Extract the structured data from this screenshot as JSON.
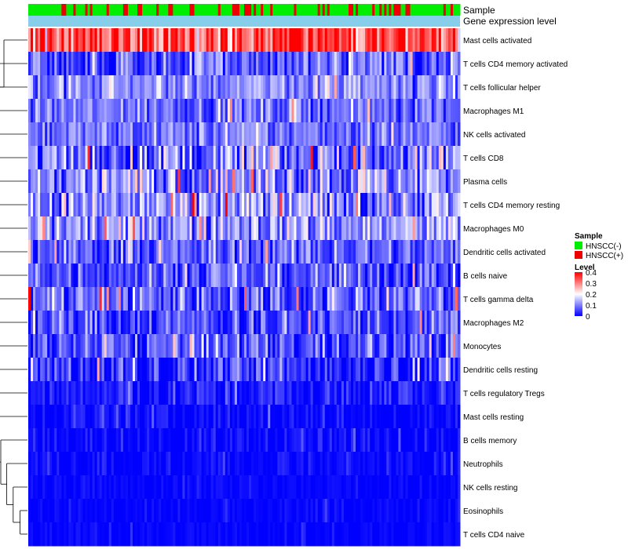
{
  "chart_data": {
    "type": "heatmap",
    "title": "",
    "annotation_labels": {
      "sample": "Sample",
      "gene": "Gene expression level"
    },
    "n_columns": 182,
    "rows": [
      {
        "name": "Mast cells activated",
        "mean": 0.34,
        "spread": 0.07
      },
      {
        "name": "T cells CD4 memory activated",
        "mean": 0.07,
        "spread": 0.06
      },
      {
        "name": "T cells follicular helper",
        "mean": 0.11,
        "spread": 0.04
      },
      {
        "name": "Macrophages M1",
        "mean": 0.09,
        "spread": 0.04
      },
      {
        "name": "NK cells activated",
        "mean": 0.09,
        "spread": 0.04
      },
      {
        "name": "T cells CD8",
        "mean": 0.09,
        "spread": 0.07
      },
      {
        "name": "Plasma cells",
        "mean": 0.12,
        "spread": 0.07
      },
      {
        "name": "T cells CD4 memory resting",
        "mean": 0.11,
        "spread": 0.07
      },
      {
        "name": "Macrophages M0",
        "mean": 0.12,
        "spread": 0.06
      },
      {
        "name": "Dendritic cells activated",
        "mean": 0.07,
        "spread": 0.05
      },
      {
        "name": "B cells naive",
        "mean": 0.07,
        "spread": 0.05
      },
      {
        "name": "T cells gamma delta",
        "mean": 0.08,
        "spread": 0.06
      },
      {
        "name": "Macrophages M2",
        "mean": 0.06,
        "spread": 0.05
      },
      {
        "name": "Monocytes",
        "mean": 0.06,
        "spread": 0.05
      },
      {
        "name": "Dendritic cells resting",
        "mean": 0.04,
        "spread": 0.05
      },
      {
        "name": "T cells regulatory  Tregs",
        "mean": 0.02,
        "spread": 0.03
      },
      {
        "name": "Mast cells resting",
        "mean": 0.005,
        "spread": 0.02
      },
      {
        "name": "B cells memory",
        "mean": 0.005,
        "spread": 0.02
      },
      {
        "name": "Neutrophils",
        "mean": 0.005,
        "spread": 0.015
      },
      {
        "name": "NK cells resting",
        "mean": 0.003,
        "spread": 0.01
      },
      {
        "name": "Eosinophils",
        "mean": 0.002,
        "spread": 0.01
      },
      {
        "name": "T cells CD4 naive",
        "mean": 0.002,
        "spread": 0.01
      }
    ],
    "sample_legend": {
      "title": "Sample",
      "entries": [
        {
          "label": "HNSCC(-)",
          "color": "#00ee00"
        },
        {
          "label": "HNSCC(+)",
          "color": "#ee0000"
        }
      ],
      "positive_fraction": 0.22
    },
    "level_legend": {
      "title": "Level",
      "ticks": [
        "0.4",
        "0.3",
        "0.2",
        "0.1",
        "0"
      ],
      "range": [
        0,
        0.4
      ],
      "colors": [
        "#0000ff",
        "#ffffff",
        "#ff0000"
      ]
    },
    "gene_color": "#87ceeb"
  }
}
